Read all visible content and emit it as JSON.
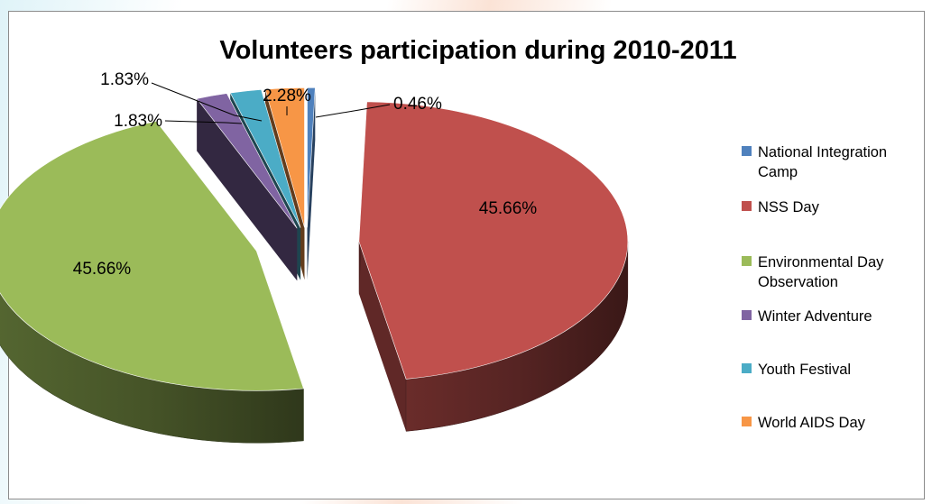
{
  "chart_data": {
    "type": "pie",
    "title": "Volunteers participation during 2010-2011",
    "categories": [
      "National Integration Camp",
      "NSS Day",
      "Environmental Day Observation",
      "Winter Adventure",
      "Youth Festival",
      "World AIDS Day"
    ],
    "values": [
      0.46,
      45.66,
      45.66,
      1.83,
      1.83,
      2.28
    ],
    "data_labels": [
      "0.46%",
      "45.66%",
      "45.66%",
      "1.83%",
      "1.83%",
      "2.28%"
    ],
    "colors": [
      "#4f81bd",
      "#c0504d",
      "#9bbb59",
      "#8064a2",
      "#4bacc6",
      "#f79646"
    ],
    "exploded": true,
    "style": "3D",
    "legend_position": "right"
  }
}
